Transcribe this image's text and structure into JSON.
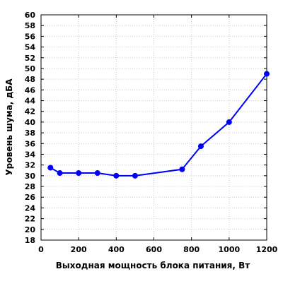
{
  "chart_data": {
    "type": "line",
    "title": "",
    "xlabel": "Выходная мощность блока питания, Вт",
    "ylabel": "Уровень шума, дБА",
    "xlim": [
      0,
      1200
    ],
    "ylim": [
      18,
      60
    ],
    "x_ticks": [
      0,
      200,
      400,
      600,
      800,
      1000,
      1200
    ],
    "y_ticks": [
      18,
      20,
      22,
      24,
      26,
      28,
      30,
      32,
      34,
      36,
      38,
      40,
      42,
      44,
      46,
      48,
      50,
      52,
      54,
      56,
      58,
      60
    ],
    "grid": true,
    "legend": "none",
    "series": [
      {
        "color": "#0000ff",
        "x": [
          50,
          100,
          200,
          300,
          400,
          500,
          750,
          850,
          1000,
          1200
        ],
        "y": [
          31.5,
          30.5,
          30.5,
          30.5,
          30.0,
          30.0,
          31.2,
          35.5,
          40.0,
          49.0
        ]
      }
    ]
  }
}
